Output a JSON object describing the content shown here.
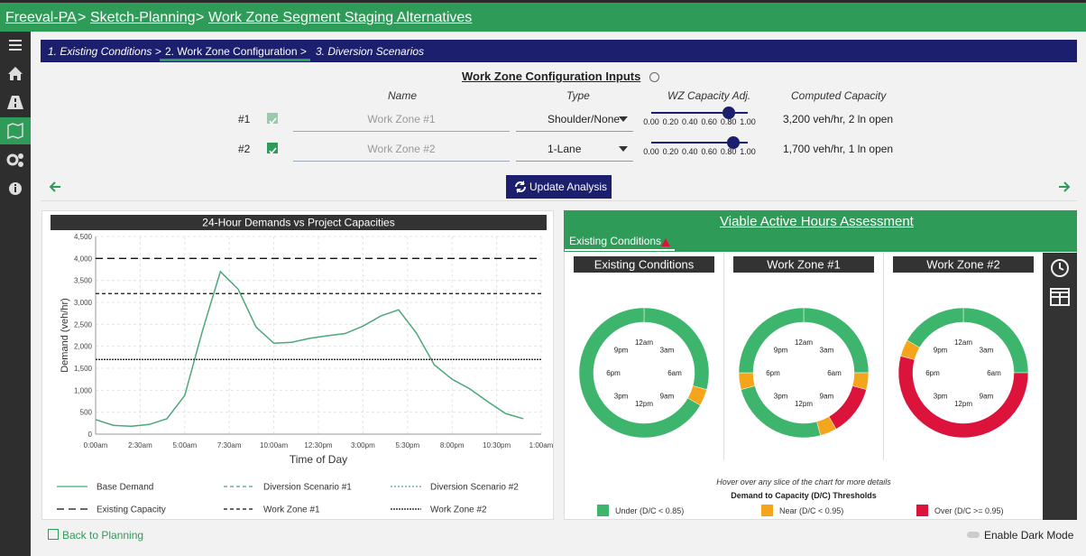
{
  "breadcrumb": [
    "Freeval-PA",
    "Sketch-Planning",
    "Work Zone Segment Staging Alternatives"
  ],
  "steps": [
    "1. Existing Conditions >",
    "2. Work Zone Configuration >",
    "3. Diversion Scenarios"
  ],
  "inputs": {
    "title": "Work Zone Configuration Inputs",
    "columns": [
      "Name",
      "Type",
      "WZ Capacity Adj.",
      "Computed Capacity"
    ],
    "slider_ticks": [
      {
        "value": 0,
        "label": "0.00"
      },
      {
        "value": 0.2,
        "label": "0.20"
      },
      {
        "value": 0.4,
        "label": "0.40"
      },
      {
        "value": 0.6,
        "label": "0.60"
      },
      {
        "value": 0.8,
        "label": "0.80"
      },
      {
        "value": 1,
        "label": "1.00"
      }
    ],
    "rows": [
      {
        "id": "#1",
        "checked": true,
        "disabled": true,
        "name": "Work Zone #1",
        "type": "Shoulder/None",
        "capacity_adj": 0.8,
        "computed": "3,200 veh/hr, 2 ln open"
      },
      {
        "id": "#2",
        "checked": true,
        "disabled": false,
        "name": "Work Zone #2",
        "type": "1-Lane",
        "capacity_adj": 0.85,
        "computed": "1,700 veh/hr, 1 ln open"
      }
    ]
  },
  "update_button": "Update Analysis",
  "chart_data": [
    {
      "type": "line",
      "title": "24-Hour Demands vs Project Capacities",
      "xlabel": "Time of Day",
      "ylabel": "Demand (veh/hr)",
      "x": [
        0,
        1,
        2,
        3,
        4,
        5,
        6,
        7,
        8,
        9,
        10,
        11,
        12,
        13,
        14,
        15,
        16,
        17,
        18,
        19,
        20,
        21,
        22,
        23,
        24
      ],
      "xlim": [
        0,
        25
      ],
      "xticks": [
        {
          "value": 0,
          "label": "0:00am"
        },
        {
          "value": 2.5,
          "label": "2:30am"
        },
        {
          "value": 5,
          "label": "5:00am"
        },
        {
          "value": 7.5,
          "label": "7:30am"
        },
        {
          "value": 10,
          "label": "10:00am"
        },
        {
          "value": 12.5,
          "label": "12:30pm"
        },
        {
          "value": 15,
          "label": "3:00pm"
        },
        {
          "value": 17.5,
          "label": "5:30pm"
        },
        {
          "value": 20,
          "label": "8:00pm"
        },
        {
          "value": 22.5,
          "label": "10:30pm"
        },
        {
          "value": 25,
          "label": "1:00am"
        }
      ],
      "ylim": [
        0,
        4500
      ],
      "yticks": [
        0,
        500,
        {
          "value": 1000,
          "label": "1,000"
        },
        {
          "value": 1500,
          "label": "1,500"
        },
        {
          "value": 2000,
          "label": "2,000"
        },
        {
          "value": 2500,
          "label": "2,500"
        },
        {
          "value": 3000,
          "label": "3,000"
        },
        {
          "value": 3500,
          "label": "3,500"
        },
        {
          "value": 4000,
          "label": "4,000"
        },
        {
          "value": 4500,
          "label": "4,500"
        }
      ],
      "grid": true,
      "series": [
        {
          "name": "Base Demand",
          "color": "#4ca77a",
          "dash": "",
          "values": [
            330,
            200,
            180,
            220,
            350,
            880,
            2360,
            3700,
            3300,
            2440,
            2070,
            2090,
            2180,
            2240,
            2290,
            2460,
            2690,
            2830,
            2300,
            1580,
            1250,
            1030,
            740,
            470,
            350
          ]
        },
        {
          "name": "Diversion Scenario #1",
          "color": "#4ca77a",
          "dash": "4,3"
        },
        {
          "name": "Diversion Scenario #2",
          "color": "#4ca77a",
          "dash": "2,2"
        },
        {
          "name": "Existing Capacity",
          "color": "#111111",
          "dash": "8,5",
          "value": 4000
        },
        {
          "name": "Work Zone #1",
          "color": "#111111",
          "dash": "4,3",
          "value": 3200
        },
        {
          "name": "Work Zone #2",
          "color": "#111111",
          "dash": "2,1",
          "value": 1700
        }
      ]
    },
    {
      "type": "pie",
      "title": "Existing Conditions",
      "values": [
        7,
        1,
        16
      ],
      "colors": [
        "#3db56c",
        "#f4a51c",
        "#3db56c"
      ]
    },
    {
      "type": "pie",
      "title": "Work Zone #1",
      "values": [
        6,
        1,
        3,
        1,
        6,
        1,
        6
      ],
      "colors": [
        "#3db56c",
        "#f4a51c",
        "#dc143c",
        "#f4a51c",
        "#3db56c",
        "#f4a51c",
        "#3db56c"
      ]
    },
    {
      "type": "pie",
      "title": "Work Zone #2",
      "values": [
        6,
        13,
        1,
        4
      ],
      "colors": [
        "#3db56c",
        "#dc143c",
        "#f4a51c",
        "#3db56c"
      ]
    }
  ],
  "assessment": {
    "title": "Viable Active Hours Assessment",
    "tab": "Existing Conditions",
    "hour_labels": [
      "12am",
      "3am",
      "6am",
      "9am",
      "12pm",
      "3pm",
      "6pm",
      "9pm"
    ],
    "hint": "Hover over any slice of the chart for more details",
    "legend_title": "Demand to Capacity (D/C) Thresholds",
    "legend": [
      {
        "label": "Under (D/C < 0.85)",
        "color": "#3db56c"
      },
      {
        "label": "Near (D/C < 0.95)",
        "color": "#f4a51c"
      },
      {
        "label": "Over (D/C >= 0.95)",
        "color": "#dc143c"
      }
    ]
  },
  "footer": {
    "back": "Back to Planning",
    "dark_mode": "Enable Dark Mode"
  }
}
